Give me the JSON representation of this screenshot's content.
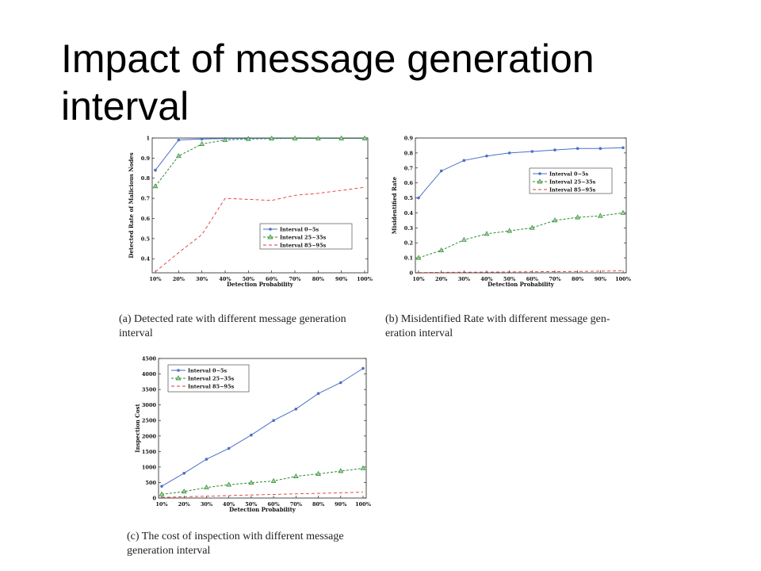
{
  "slide": {
    "title_line1": "Impact of message generation",
    "title_line2": "interval"
  },
  "captions": {
    "a_line1": "(a) Detected rate with different message generation",
    "a_line2": "interval",
    "b_line1": "(b) Misidentified Rate with different message gen-",
    "b_line2": "eration interval",
    "c_line1": "(c) The cost of inspection with different message",
    "c_line2": "generation interval"
  },
  "colors": {
    "series1": "#4a6fc4",
    "series2": "#2f8a2f",
    "series3": "#e23a3a",
    "series2_marker_fill": "#9fd39f"
  },
  "chart_data": [
    {
      "type": "line",
      "panel": "a",
      "xlabel": "Detection Probability",
      "ylabel": "Detected Rate of Malicious Nodes",
      "categories": [
        "10%",
        "20%",
        "30%",
        "40%",
        "50%",
        "60%",
        "70%",
        "80%",
        "90%",
        "100%"
      ],
      "ylim": [
        0.33,
        1.0
      ],
      "yticks": [
        0.4,
        0.5,
        0.6,
        0.7,
        0.8,
        0.9,
        1
      ],
      "ytick_labels": [
        "0.4",
        "0.5",
        "0.6",
        "0.7",
        "0.8",
        "0.9",
        "1"
      ],
      "legend_position": "right",
      "series": [
        {
          "name": "Interval 0~5s",
          "style": "solid",
          "marker": "dot",
          "values": [
            0.84,
            0.99,
            0.995,
            0.997,
            0.998,
            0.998,
            0.998,
            0.998,
            0.998,
            0.998
          ]
        },
        {
          "name": "Interval 25~35s",
          "style": "dashed",
          "marker": "triangle",
          "values": [
            0.76,
            0.91,
            0.97,
            0.99,
            0.995,
            0.997,
            0.998,
            0.998,
            0.998,
            0.998
          ]
        },
        {
          "name": "Interval 85~95s",
          "style": "dashed",
          "marker": "none",
          "values": [
            0.335,
            0.43,
            0.52,
            0.7,
            0.695,
            0.69,
            0.715,
            0.725,
            0.74,
            0.755
          ]
        }
      ]
    },
    {
      "type": "line",
      "panel": "b",
      "xlabel": "Detection Probability",
      "ylabel": "Misidentified Rate",
      "categories": [
        "10%",
        "20%",
        "30%",
        "40%",
        "50%",
        "60%",
        "70%",
        "80%",
        "90%",
        "100%"
      ],
      "ylim": [
        0,
        0.9
      ],
      "yticks": [
        0,
        0.1,
        0.2,
        0.3,
        0.4,
        0.5,
        0.6,
        0.7,
        0.8,
        0.9
      ],
      "ytick_labels": [
        "0",
        "0.1",
        "0.2",
        "0.3",
        "0.4",
        "0.5",
        "0.6",
        "0.7",
        "0.8",
        "0.9"
      ],
      "legend_position": "right",
      "series": [
        {
          "name": "Interval 0~5s",
          "style": "solid",
          "marker": "dot",
          "values": [
            0.5,
            0.68,
            0.75,
            0.78,
            0.8,
            0.81,
            0.82,
            0.83,
            0.83,
            0.835
          ]
        },
        {
          "name": "Interval 25~35s",
          "style": "dashed",
          "marker": "triangle",
          "values": [
            0.1,
            0.15,
            0.22,
            0.26,
            0.28,
            0.3,
            0.35,
            0.37,
            0.38,
            0.4
          ]
        },
        {
          "name": "Interval 85~95s",
          "style": "dashed",
          "marker": "none",
          "values": [
            0.002,
            0.003,
            0.004,
            0.005,
            0.006,
            0.007,
            0.008,
            0.009,
            0.011,
            0.013
          ]
        }
      ]
    },
    {
      "type": "line",
      "panel": "c",
      "xlabel": "Detection Probability",
      "ylabel": "Inspection Cost",
      "categories": [
        "10%",
        "20%",
        "30%",
        "40%",
        "50%",
        "60%",
        "70%",
        "80%",
        "90%",
        "100%"
      ],
      "ylim": [
        0,
        4500
      ],
      "yticks": [
        0,
        500,
        1000,
        1500,
        2000,
        2500,
        3000,
        3500,
        4000,
        4500
      ],
      "ytick_labels": [
        "0",
        "500",
        "1000",
        "1500",
        "2000",
        "2500",
        "3000",
        "3500",
        "4000",
        "4500"
      ],
      "legend_position": "top-left",
      "series": [
        {
          "name": "Interval 0~5s",
          "style": "solid",
          "marker": "dot",
          "values": [
            380,
            800,
            1250,
            1600,
            2030,
            2500,
            2870,
            3370,
            3720,
            4180
          ]
        },
        {
          "name": "Interval 25~35s",
          "style": "dashed",
          "marker": "triangle",
          "values": [
            120,
            210,
            340,
            430,
            490,
            550,
            700,
            780,
            870,
            960
          ]
        },
        {
          "name": "Interval 85~95s",
          "style": "dashed",
          "marker": "none",
          "values": [
            20,
            40,
            60,
            80,
            100,
            115,
            135,
            150,
            170,
            190
          ]
        }
      ]
    }
  ]
}
